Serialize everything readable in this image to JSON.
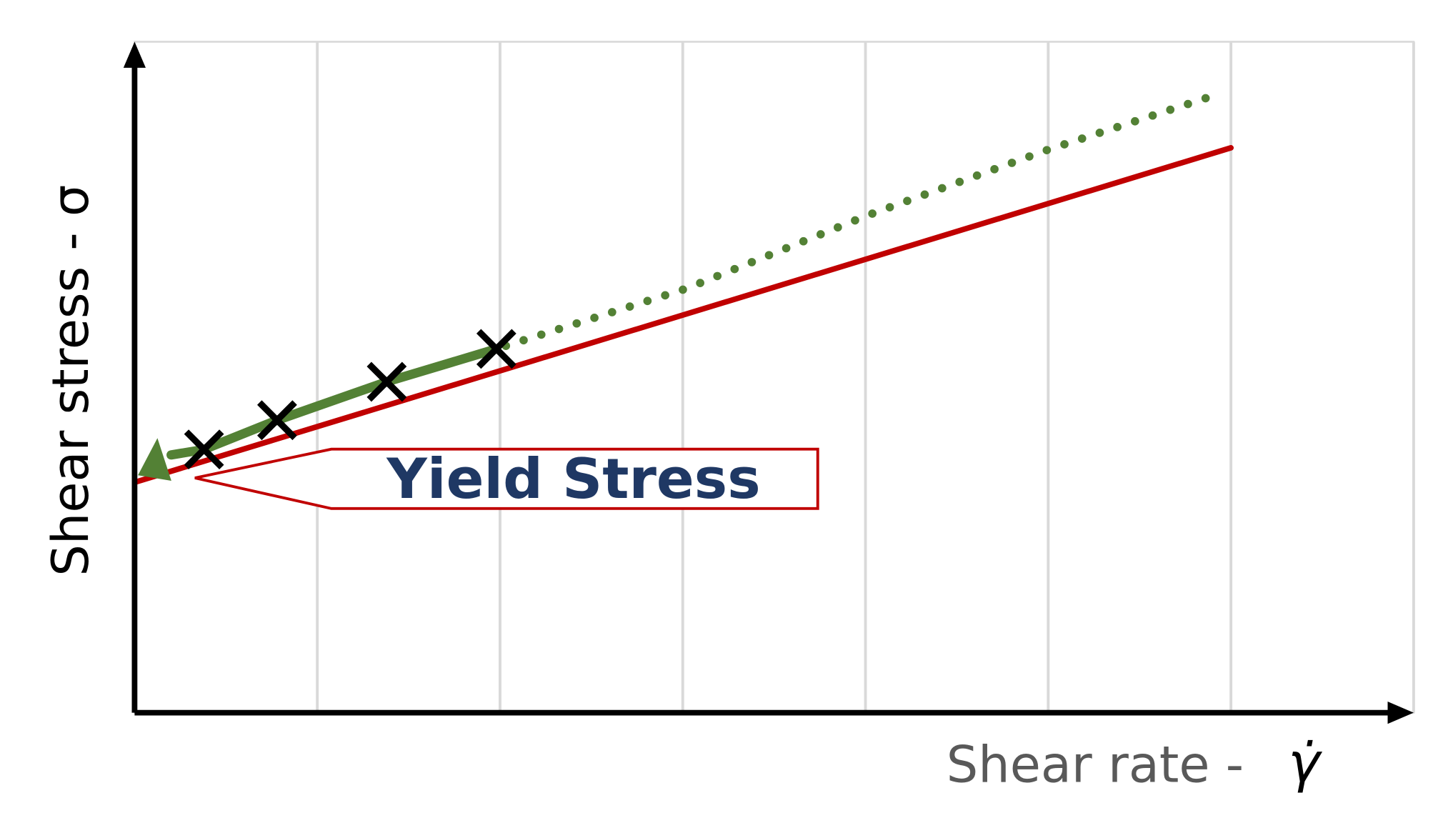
{
  "chart_data": {
    "type": "line",
    "y_label": "Shear stress - σ",
    "x_label": "Shear rate -",
    "x_label_symbol": "γ̇",
    "annotation": "Yield Stress",
    "xlim": [
      0,
      7
    ],
    "ylim": [
      0,
      3.67
    ],
    "x_grid": [
      1,
      2,
      3,
      4,
      5,
      6,
      7
    ],
    "series": [
      {
        "color": "#c00000",
        "style": "solid",
        "x": [
          0,
          6.0
        ],
        "y": [
          1.26,
          3.09
        ]
      },
      {
        "color": "#538135",
        "style": "dotted",
        "x": [
          0.2,
          0.38,
          0.78,
          1.38,
          1.98,
          3.02,
          4.01,
          5.0,
          5.95
        ],
        "y": [
          1.41,
          1.44,
          1.6,
          1.81,
          1.99,
          2.32,
          2.72,
          3.08,
          3.39
        ]
      },
      {
        "color": "#538135",
        "style": "solid",
        "x": [
          0.2,
          0.38,
          0.78,
          1.38,
          1.98
        ],
        "y": [
          1.41,
          1.44,
          1.6,
          1.81,
          1.99
        ]
      }
    ],
    "markers": {
      "color": "#000000",
      "x": [
        0.38,
        0.78,
        1.38,
        1.98
      ],
      "y": [
        1.44,
        1.6,
        1.81,
        1.99
      ]
    },
    "yield_point": {
      "color": "#538135",
      "x": 0.12,
      "y": 1.37
    }
  }
}
